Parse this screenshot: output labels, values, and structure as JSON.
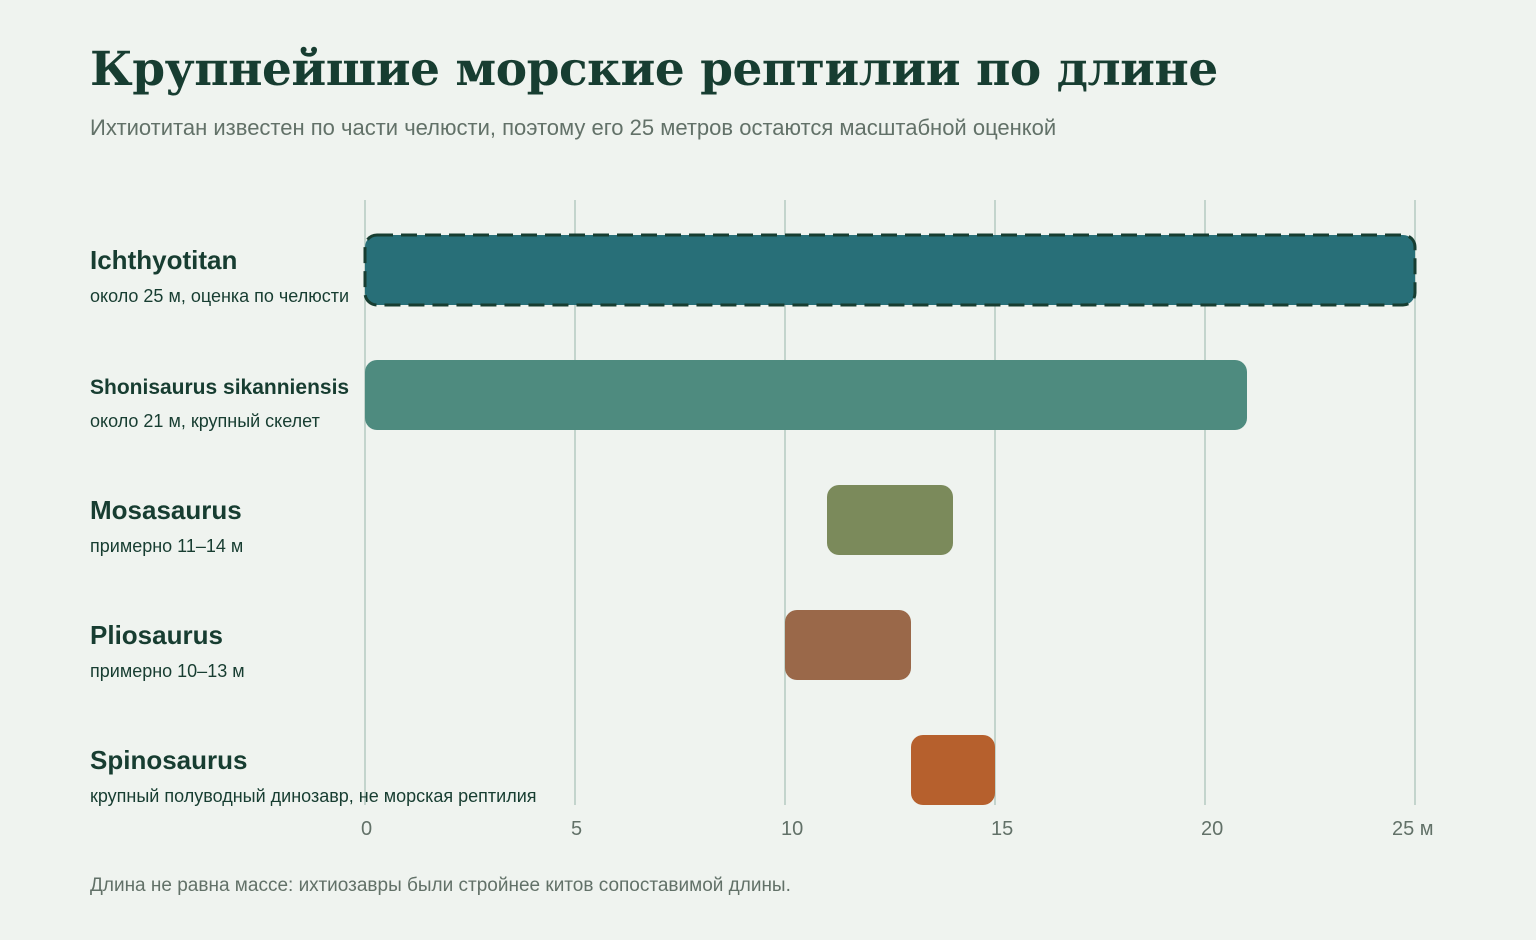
{
  "header": {
    "title": "Крупнейшие морские рептилии по длине",
    "subtitle": "Ихтиотитан известен по части челюсти, поэтому его 25 метров остаются масштабной оценкой"
  },
  "footer": {
    "note": "Длина не равна массе: ихтиозавры были стройнее китов сопоставимой длины."
  },
  "chart_data": {
    "type": "bar",
    "orientation": "horizontal",
    "title": "Крупнейшие морские рептилии по длине",
    "subtitle": "Ихтиотитан известен по части челюсти, поэтому его 25 метров остаются масштабной оценкой",
    "xlabel": "",
    "ylabel": "",
    "unit": "м",
    "xlim": [
      0,
      25
    ],
    "ticks": [
      {
        "value": 0,
        "label": "0"
      },
      {
        "value": 5,
        "label": "5"
      },
      {
        "value": 10,
        "label": "10"
      },
      {
        "value": 15,
        "label": "15"
      },
      {
        "value": 20,
        "label": "20"
      },
      {
        "value": 25,
        "label": "25 м"
      }
    ],
    "grid": true,
    "legend": "none",
    "rows": [
      {
        "name": "Ichthyotitan",
        "note": "около 25 м, оценка по челюсти",
        "start": 0,
        "end": 25,
        "color": "#286f78",
        "estimate": true
      },
      {
        "name": "Shonisaurus sikanniensis",
        "note": "около 21 м, крупный скелет",
        "start": 0,
        "end": 21,
        "color": "#4e8b7f",
        "estimate": false
      },
      {
        "name": "Mosasaurus",
        "note": "примерно 11–14 м",
        "start": 11,
        "end": 14,
        "color": "#7b8a5b",
        "estimate": false
      },
      {
        "name": "Pliosaurus",
        "note": "примерно 10–13 м",
        "start": 10,
        "end": 13,
        "color": "#9a6849",
        "estimate": false
      },
      {
        "name": "Spinosaurus",
        "note": "крупный полуводный динозавр, не морская рептилия",
        "start": 13,
        "end": 15,
        "color": "#b6602d",
        "estimate": false
      }
    ]
  },
  "colors": {
    "background": "#eff3ef",
    "title": "#173d31",
    "muted": "#627168",
    "grid": "#b8cdc4",
    "estimate_border": "#173d31"
  }
}
